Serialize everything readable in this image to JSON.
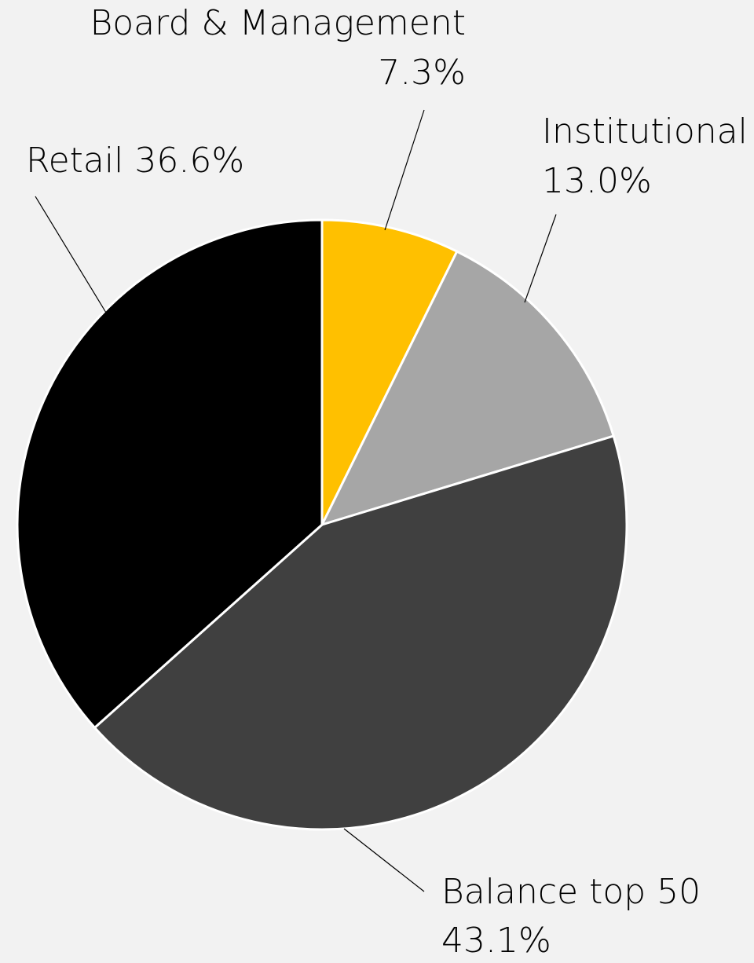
{
  "chart_data": {
    "type": "pie",
    "categories": [
      "Board & Management",
      "Institutional",
      "Balance top 50",
      "Retail"
    ],
    "values": [
      7.3,
      13.0,
      43.1,
      36.6
    ],
    "value_labels": [
      "7.3%",
      "13.0%",
      "43.1%",
      "36.6%"
    ],
    "colors": [
      "#ffc000",
      "#a6a6a6",
      "#404040",
      "#000000"
    ]
  }
}
